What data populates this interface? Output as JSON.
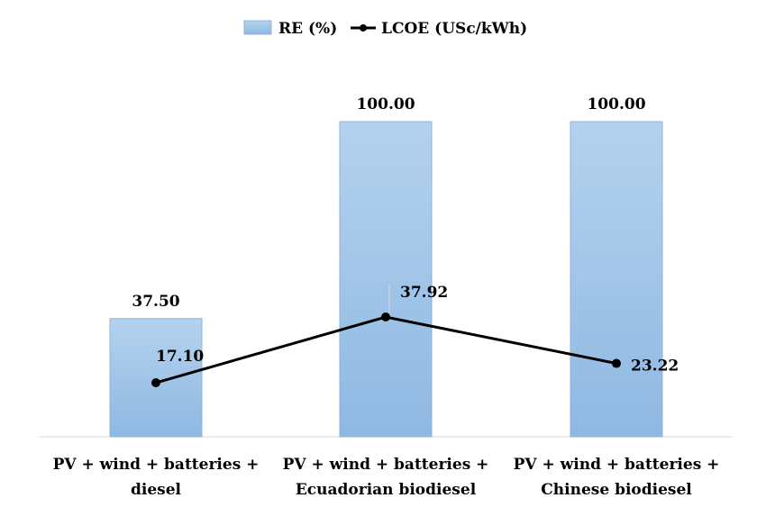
{
  "chart_data": {
    "type": "bar",
    "categories": [
      [
        "PV + wind + batteries +",
        "diesel"
      ],
      [
        "PV + wind + batteries +",
        "Ecuadorian biodiesel"
      ],
      [
        "PV + wind + batteries +",
        "Chinese biodiesel"
      ]
    ],
    "series": [
      {
        "name": "RE (%)",
        "type": "bar",
        "values": [
          37.5,
          100,
          100
        ],
        "labels": [
          "37.50",
          "100.00",
          "100.00"
        ],
        "color": "#9dc3e6",
        "ylim": [
          0,
          100
        ]
      },
      {
        "name": "LCOE (USc/kWh)",
        "type": "line",
        "values": [
          17.1,
          37.92,
          23.22
        ],
        "labels": [
          "17.10",
          "37.92",
          "23.22"
        ],
        "color": "#000000",
        "ylim": [
          0,
          40
        ]
      }
    ],
    "legend_position": "top-center",
    "grid": false
  }
}
